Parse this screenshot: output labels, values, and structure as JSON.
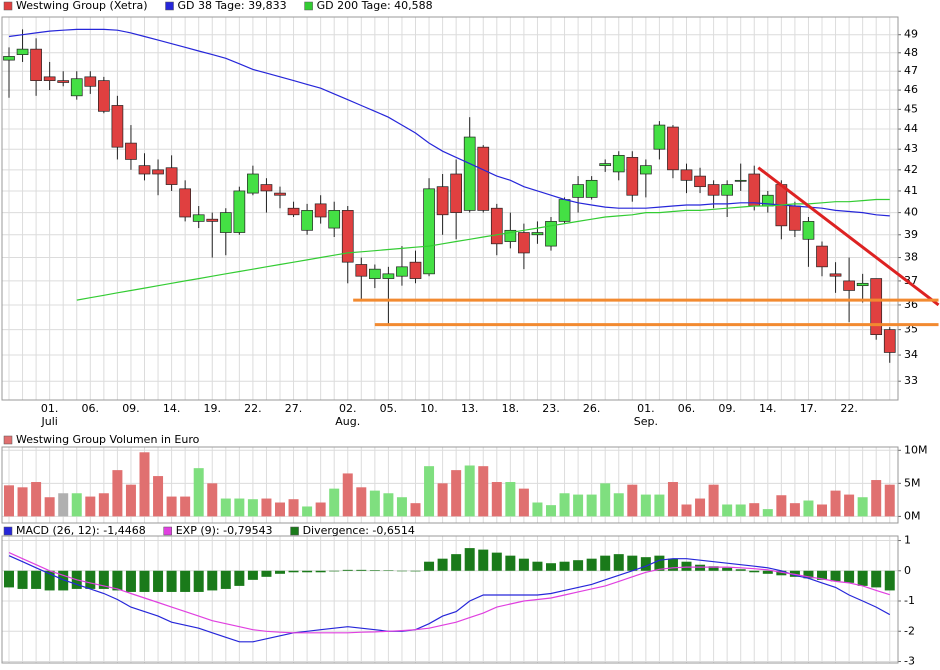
{
  "chart_data": [
    {
      "type": "candlestick",
      "categories": [
        null,
        null,
        null,
        "01.",
        null,
        null,
        "06.",
        null,
        null,
        "09.",
        null,
        null,
        "14.",
        null,
        null,
        "19.",
        null,
        null,
        "22.",
        null,
        null,
        "27.",
        null,
        null,
        null,
        "02.",
        null,
        null,
        "05.",
        null,
        null,
        "10.",
        null,
        null,
        "13.",
        null,
        null,
        "18.",
        null,
        null,
        "23.",
        null,
        null,
        "26.",
        null,
        null,
        null,
        "01.",
        null,
        null,
        "06.",
        null,
        null,
        "09.",
        null,
        null,
        "14.",
        null,
        null,
        "17.",
        null,
        null,
        "22.",
        null,
        null,
        null
      ],
      "month_labels": [
        null,
        null,
        null,
        "Juli",
        null,
        null,
        null,
        null,
        null,
        null,
        null,
        null,
        null,
        null,
        null,
        null,
        null,
        null,
        null,
        null,
        null,
        null,
        null,
        null,
        null,
        "Aug.",
        null,
        null,
        null,
        null,
        null,
        null,
        null,
        null,
        null,
        null,
        null,
        null,
        null,
        null,
        null,
        null,
        null,
        null,
        null,
        null,
        null,
        "Sep.",
        null,
        null,
        null,
        null,
        null,
        null,
        null,
        null,
        null,
        null,
        null,
        null,
        null,
        null,
        null,
        null,
        null,
        null
      ],
      "series": [
        {
          "name": "Westwing Group (Xetra)",
          "color": "#e04040",
          "up_color": "#44e044",
          "open": [
            47.6,
            47.9,
            48.2,
            46.7,
            46.5,
            45.7,
            46.7,
            46.5,
            45.2,
            43.3,
            42.2,
            42.0,
            42.1,
            41.1,
            39.6,
            39.7,
            39.1,
            39.1,
            40.9,
            41.3,
            40.9,
            40.2,
            39.2,
            40.4,
            39.3,
            40.1,
            37.7,
            37.1,
            37.1,
            37.2,
            37.8,
            37.3,
            41.2,
            41.8,
            40.1,
            43.1,
            40.2,
            38.7,
            39.1,
            39.0,
            38.5,
            39.6,
            40.7,
            40.7,
            42.2,
            41.9,
            42.6,
            41.8,
            43.0,
            44.1,
            42.0,
            41.7,
            41.3,
            40.8,
            41.5,
            41.8,
            40.3,
            41.3,
            40.3,
            38.8,
            38.5,
            37.3,
            37.0,
            36.8,
            37.1,
            35.0
          ],
          "high": [
            48.3,
            49.3,
            48.8,
            47.5,
            47.0,
            47.0,
            47.0,
            46.7,
            45.7,
            44.2,
            42.8,
            42.5,
            42.7,
            41.5,
            40.3,
            40.0,
            40.2,
            41.2,
            42.2,
            41.6,
            41.2,
            40.5,
            40.4,
            40.8,
            40.5,
            40.3,
            38.0,
            37.7,
            37.6,
            38.5,
            38.3,
            41.6,
            41.8,
            42.5,
            44.6,
            43.2,
            40.4,
            40.0,
            39.5,
            39.6,
            39.8,
            40.7,
            41.7,
            41.7,
            42.5,
            42.9,
            42.9,
            42.5,
            44.4,
            44.2,
            42.3,
            42.1,
            41.5,
            41.5,
            42.3,
            42.2,
            41.0,
            41.5,
            40.5,
            39.8,
            38.7,
            37.8,
            38.0,
            37.3,
            37.1,
            35.1
          ],
          "low": [
            45.6,
            47.5,
            45.7,
            46.0,
            46.2,
            45.5,
            45.8,
            44.8,
            42.5,
            42.0,
            41.5,
            40.8,
            41.0,
            39.6,
            39.3,
            38.0,
            38.1,
            39.0,
            40.8,
            40.0,
            40.2,
            39.8,
            39.0,
            39.5,
            38.9,
            36.9,
            36.2,
            36.7,
            35.2,
            36.8,
            36.9,
            37.2,
            39.0,
            38.8,
            40.0,
            40.0,
            38.1,
            38.4,
            37.5,
            38.6,
            38.3,
            39.5,
            40.0,
            40.6,
            41.9,
            41.5,
            40.5,
            40.7,
            42.5,
            41.6,
            40.9,
            40.9,
            40.2,
            39.8,
            41.0,
            40.1,
            40.0,
            38.8,
            38.9,
            37.6,
            37.2,
            36.5,
            35.3,
            36.1,
            34.6,
            33.7
          ],
          "close": [
            47.8,
            48.2,
            46.5,
            46.5,
            46.4,
            46.6,
            46.2,
            44.9,
            43.1,
            42.5,
            41.8,
            41.8,
            41.3,
            39.8,
            39.9,
            39.6,
            40.0,
            41.0,
            41.8,
            41.0,
            40.8,
            39.9,
            40.1,
            39.8,
            40.1,
            37.8,
            37.2,
            37.5,
            37.3,
            37.6,
            37.1,
            41.1,
            39.9,
            40.0,
            43.6,
            40.1,
            38.6,
            39.2,
            38.2,
            39.1,
            39.6,
            40.6,
            41.3,
            41.5,
            42.3,
            42.7,
            40.8,
            42.2,
            44.2,
            42.0,
            41.5,
            41.2,
            40.8,
            41.3,
            41.5,
            40.3,
            40.8,
            39.4,
            39.2,
            39.6,
            37.6,
            37.2,
            36.6,
            36.9,
            34.8,
            34.1
          ]
        },
        {
          "name": "GD 38 Tage: 39,833",
          "color": "#2626d9",
          "values": [
            48.9,
            49.0,
            49.1,
            49.2,
            49.25,
            49.3,
            49.3,
            49.3,
            49.25,
            49.1,
            48.9,
            48.7,
            48.5,
            48.3,
            48.1,
            47.9,
            47.7,
            47.4,
            47.1,
            46.9,
            46.7,
            46.5,
            46.3,
            46.1,
            45.8,
            45.5,
            45.2,
            44.9,
            44.6,
            44.2,
            43.8,
            43.3,
            42.9,
            42.6,
            42.3,
            42.0,
            41.7,
            41.5,
            41.2,
            41.0,
            40.8,
            40.6,
            40.45,
            40.35,
            40.25,
            40.2,
            40.2,
            40.2,
            40.25,
            40.3,
            40.35,
            40.35,
            40.4,
            40.4,
            40.45,
            40.45,
            40.4,
            40.35,
            40.3,
            40.25,
            40.2,
            40.1,
            40.05,
            40.0,
            39.9,
            39.85
          ]
        },
        {
          "name": "GD 200 Tage: 40,588",
          "color": "#33cc33",
          "values": [
            null,
            null,
            null,
            null,
            null,
            36.2,
            36.3,
            36.4,
            36.5,
            36.6,
            36.7,
            36.8,
            36.9,
            37.0,
            37.1,
            37.2,
            37.3,
            37.4,
            37.5,
            37.6,
            37.7,
            37.8,
            37.9,
            38.0,
            38.1,
            38.2,
            38.25,
            38.3,
            38.35,
            38.4,
            38.45,
            38.5,
            38.6,
            38.7,
            38.8,
            38.9,
            39.0,
            39.1,
            39.2,
            39.3,
            39.4,
            39.5,
            39.6,
            39.7,
            39.8,
            39.85,
            39.9,
            40.0,
            40.0,
            40.05,
            40.1,
            40.1,
            40.15,
            40.2,
            40.25,
            40.3,
            40.3,
            40.35,
            40.4,
            40.4,
            40.45,
            40.5,
            40.5,
            40.55,
            40.6,
            40.6
          ]
        }
      ],
      "drawings": [
        {
          "color": "#dd2222",
          "x": [
            55.3,
            68.6
          ],
          "y": [
            42.1,
            36.0
          ]
        },
        {
          "color": "#f28a30",
          "x": [
            25.4,
            68.6
          ],
          "y": [
            36.2,
            36.2
          ]
        },
        {
          "color": "#f28a30",
          "x": [
            27.0,
            68.6
          ],
          "y": [
            35.2,
            35.2
          ]
        }
      ],
      "ylim": [
        32.3,
        50
      ],
      "yticks": [
        33,
        34,
        35,
        36,
        37,
        38,
        39,
        40,
        41,
        42,
        43,
        44,
        45,
        46,
        47,
        48,
        49
      ],
      "log_scale": true,
      "grid": true
    },
    {
      "type": "bar",
      "series": [
        {
          "name": "Westwing Group Volumen in Euro",
          "color": "#e07070",
          "colors": [
            "#e07070",
            "#e07070",
            "#e07070",
            "#e07070",
            "#b0b0b0",
            "#7fdf7f",
            "#e07070",
            "#e07070",
            "#e07070",
            "#e07070",
            "#e07070",
            "#e07070",
            "#e07070",
            "#e07070",
            "#7fdf7f",
            "#e07070",
            "#7fdf7f",
            "#7fdf7f",
            "#7fdf7f",
            "#e07070",
            "#e07070",
            "#e07070",
            "#7fdf7f",
            "#e07070",
            "#7fdf7f",
            "#e07070",
            "#e07070",
            "#7fdf7f",
            "#7fdf7f",
            "#7fdf7f",
            "#e07070",
            "#7fdf7f",
            "#e07070",
            "#e07070",
            "#7fdf7f",
            "#e07070",
            "#e07070",
            "#7fdf7f",
            "#e07070",
            "#7fdf7f",
            "#7fdf7f",
            "#7fdf7f",
            "#7fdf7f",
            "#7fdf7f",
            "#7fdf7f",
            "#7fdf7f",
            "#e07070",
            "#7fdf7f",
            "#7fdf7f",
            "#e07070",
            "#e07070",
            "#e07070",
            "#e07070",
            "#7fdf7f",
            "#7fdf7f",
            "#e07070",
            "#7fdf7f",
            "#e07070",
            "#e07070",
            "#7fdf7f",
            "#e07070",
            "#e07070",
            "#e07070",
            "#7fdf7f",
            "#e07070",
            "#e07070"
          ],
          "values": [
            4700000,
            4400000,
            5200000,
            2900000,
            3500000,
            3500000,
            3000000,
            3500000,
            7000000,
            4800000,
            9700000,
            6100000,
            3000000,
            3000000,
            7300000,
            5000000,
            2700000,
            2700000,
            2600000,
            2700000,
            2100000,
            2600000,
            1500000,
            2100000,
            4200000,
            6500000,
            4400000,
            3900000,
            3500000,
            2900000,
            2000000,
            7600000,
            5000000,
            7000000,
            7700000,
            7600000,
            5200000,
            5200000,
            4200000,
            2100000,
            1700000,
            3500000,
            3300000,
            3300000,
            5000000,
            3500000,
            4800000,
            3300000,
            3300000,
            5200000,
            1800000,
            2700000,
            4800000,
            1800000,
            1800000,
            2000000,
            1100000,
            3200000,
            2000000,
            2400000,
            1800000,
            3900000,
            3300000,
            2900000,
            5500000,
            4800000
          ]
        }
      ],
      "ylim": [
        -1000000,
        10500000
      ],
      "yticks": [
        {
          "value": 0,
          "label": "0M"
        },
        {
          "value": 5000000,
          "label": "5M"
        },
        {
          "value": 10000000,
          "label": "10M"
        }
      ],
      "grid": true
    },
    {
      "type": "macd",
      "series": [
        {
          "name": "MACD (26, 12): -1,4468",
          "color": "#2626d9",
          "style": "line",
          "values": [
            0.5,
            0.3,
            0.1,
            -0.1,
            -0.3,
            -0.45,
            -0.6,
            -0.75,
            -0.95,
            -1.2,
            -1.35,
            -1.5,
            -1.7,
            -1.8,
            -1.9,
            -2.05,
            -2.2,
            -2.35,
            -2.35,
            -2.25,
            -2.15,
            -2.05,
            -2.0,
            -1.95,
            -1.9,
            -1.85,
            -1.9,
            -1.95,
            -2.0,
            -2.0,
            -1.95,
            -1.75,
            -1.5,
            -1.35,
            -1.0,
            -0.8,
            -0.8,
            -0.8,
            -0.8,
            -0.8,
            -0.75,
            -0.65,
            -0.55,
            -0.45,
            -0.3,
            -0.15,
            0.0,
            0.15,
            0.35,
            0.4,
            0.4,
            0.35,
            0.3,
            0.25,
            0.2,
            0.15,
            0.1,
            0.0,
            -0.15,
            -0.25,
            -0.4,
            -0.55,
            -0.8,
            -1.0,
            -1.2,
            -1.45
          ]
        },
        {
          "name": "EXP (9): -0,79543",
          "color": "#e040e0",
          "style": "line",
          "values": [
            0.6,
            0.4,
            0.2,
            0.0,
            -0.15,
            -0.3,
            -0.4,
            -0.5,
            -0.6,
            -0.75,
            -0.9,
            -1.05,
            -1.2,
            -1.35,
            -1.5,
            -1.65,
            -1.75,
            -1.85,
            -1.95,
            -2.0,
            -2.03,
            -2.05,
            -2.05,
            -2.05,
            -2.05,
            -2.05,
            -2.03,
            -2.02,
            -2.0,
            -1.98,
            -1.95,
            -1.9,
            -1.8,
            -1.7,
            -1.55,
            -1.4,
            -1.2,
            -1.1,
            -1.0,
            -0.95,
            -0.9,
            -0.8,
            -0.7,
            -0.6,
            -0.5,
            -0.35,
            -0.2,
            -0.05,
            0.05,
            0.1,
            0.12,
            0.12,
            0.12,
            0.12,
            0.1,
            0.07,
            0.03,
            -0.05,
            -0.12,
            -0.2,
            -0.27,
            -0.35,
            -0.4,
            -0.5,
            -0.65,
            -0.79
          ]
        },
        {
          "name": "Divergence: -0,6514",
          "color": "#1a7a1a",
          "style": "bar",
          "values": [
            -0.55,
            -0.6,
            -0.6,
            -0.65,
            -0.65,
            -0.6,
            -0.6,
            -0.6,
            -0.65,
            -0.7,
            -0.7,
            -0.7,
            -0.7,
            -0.7,
            -0.7,
            -0.65,
            -0.6,
            -0.5,
            -0.3,
            -0.2,
            -0.1,
            -0.05,
            -0.05,
            -0.05,
            -0.02,
            0.03,
            0.03,
            0.02,
            0.01,
            -0.01,
            -0.02,
            0.3,
            0.4,
            0.55,
            0.75,
            0.7,
            0.6,
            0.5,
            0.4,
            0.3,
            0.25,
            0.3,
            0.35,
            0.4,
            0.5,
            0.55,
            0.5,
            0.45,
            0.5,
            0.4,
            0.3,
            0.2,
            0.15,
            0.1,
            0.05,
            -0.05,
            -0.1,
            -0.15,
            -0.2,
            -0.25,
            -0.3,
            -0.35,
            -0.4,
            -0.5,
            -0.55,
            -0.65
          ]
        }
      ],
      "ylim": [
        -3.05,
        1.15
      ],
      "yticks": [
        -3,
        -2,
        -1,
        0,
        1
      ],
      "grid": true
    }
  ]
}
